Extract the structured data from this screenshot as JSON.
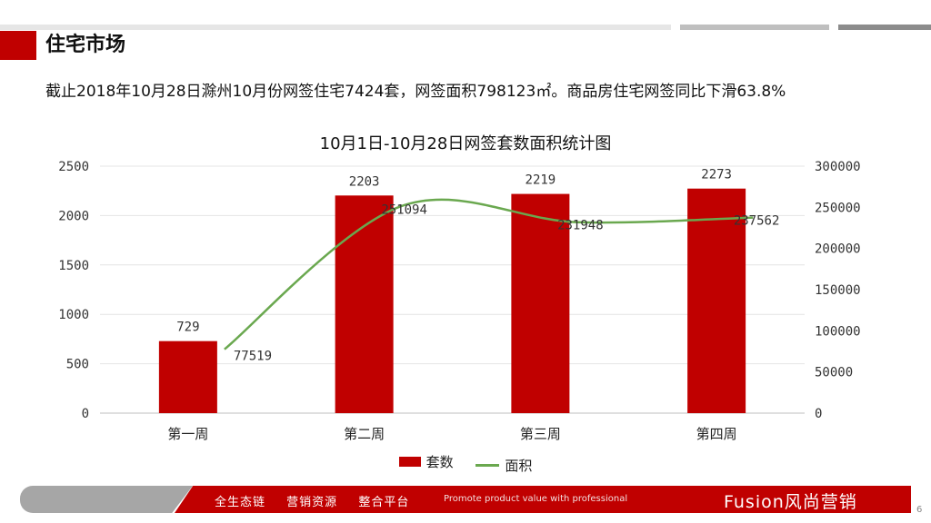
{
  "header": {
    "title": "住宅市场",
    "summary": "截止2018年10月28日滁州10月份网签住宅7424套，网签面积798123㎡。商品房住宅网签同比下滑63.8%"
  },
  "chart_data": {
    "type": "bar",
    "title": "10月1日-10月28日网签套数面积统计图",
    "categories": [
      "第一周",
      "第二周",
      "第三周",
      "第四周"
    ],
    "series": [
      {
        "name": "套数",
        "type": "bar",
        "axis": "left",
        "values": [
          729,
          2203,
          2219,
          2273
        ],
        "color": "#c00000"
      },
      {
        "name": "面积",
        "type": "line",
        "axis": "right",
        "values": [
          77519,
          251094,
          231948,
          237562
        ],
        "color": "#6aa84f"
      }
    ],
    "y_left": {
      "min": 0,
      "max": 2500,
      "ticks": [
        "0",
        "500",
        "1000",
        "1500",
        "2000",
        "2500"
      ]
    },
    "y_right": {
      "min": 0,
      "max": 300000,
      "ticks": [
        "0",
        "50000",
        "100000",
        "150000",
        "200000",
        "250000",
        "300000"
      ]
    },
    "grid": true,
    "legend_position": "bottom"
  },
  "footer": {
    "tags": [
      "全生态链",
      "营销资源",
      "整合平台"
    ],
    "slogan": "Promote product value with professional",
    "brand": "Fusion风尚营销",
    "page": "6"
  },
  "colors": {
    "accent": "#c00000",
    "line": "#6aa84f"
  }
}
